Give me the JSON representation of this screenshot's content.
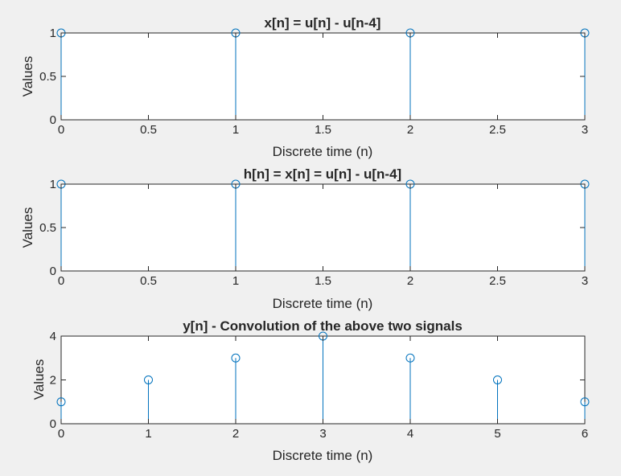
{
  "figure": {
    "background": "#f0f0f0",
    "plot_background": "#ffffff",
    "stem_color": "#0072bd"
  },
  "chart_data": [
    {
      "type": "stem",
      "title": "x[n] = u[n] - u[n-4]",
      "xlabel": "Discrete time (n)",
      "ylabel": "Values",
      "xlim": [
        0,
        3
      ],
      "ylim": [
        0,
        1
      ],
      "xticks": [
        "0",
        "0.5",
        "1",
        "1.5",
        "2",
        "2.5",
        "3"
      ],
      "yticks": [
        "0",
        "0.5",
        "1"
      ],
      "grid": false,
      "x": [
        0,
        1,
        2,
        3
      ],
      "y": [
        1,
        1,
        1,
        1
      ]
    },
    {
      "type": "stem",
      "title": "h[n] = x[n] = u[n] - u[n-4]",
      "xlabel": "Discrete time (n)",
      "ylabel": "Values",
      "xlim": [
        0,
        3
      ],
      "ylim": [
        0,
        1
      ],
      "xticks": [
        "0",
        "0.5",
        "1",
        "1.5",
        "2",
        "2.5",
        "3"
      ],
      "yticks": [
        "0",
        "0.5",
        "1"
      ],
      "grid": false,
      "x": [
        0,
        1,
        2,
        3
      ],
      "y": [
        1,
        1,
        1,
        1
      ]
    },
    {
      "type": "stem",
      "title": "y[n] - Convolution of the above two signals",
      "xlabel": "Discrete time (n)",
      "ylabel": "Values",
      "xlim": [
        0,
        6
      ],
      "ylim": [
        0,
        4
      ],
      "xticks": [
        "0",
        "1",
        "2",
        "3",
        "4",
        "5",
        "6"
      ],
      "yticks": [
        "0",
        "2",
        "4"
      ],
      "grid": false,
      "x": [
        0,
        1,
        2,
        3,
        4,
        5,
        6
      ],
      "y": [
        1,
        2,
        3,
        4,
        3,
        2,
        1
      ]
    }
  ]
}
